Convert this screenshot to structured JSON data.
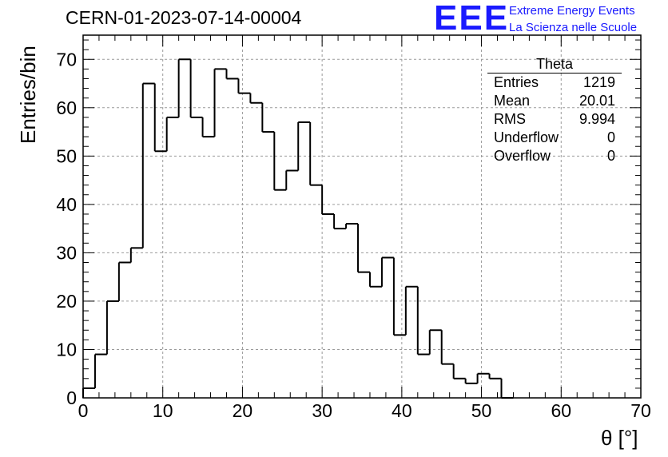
{
  "header": {
    "title": "CERN-01-2023-07-14-00004",
    "logo": "EEE",
    "logo_line1": "Extreme Energy Events",
    "logo_line2": "La Scienza nelle Scuole"
  },
  "stats": {
    "title": "Theta",
    "rows": [
      {
        "label": "Entries",
        "value": "1219"
      },
      {
        "label": "Mean",
        "value": "20.01"
      },
      {
        "label": "RMS",
        "value": "9.994"
      },
      {
        "label": "Underflow",
        "value": "0"
      },
      {
        "label": "Overflow",
        "value": "0"
      }
    ]
  },
  "chart_data": {
    "type": "bar",
    "title": "CERN-01-2023-07-14-00004",
    "xlabel": "θ [°]",
    "ylabel": "Entries/bin",
    "xlim": [
      0,
      70
    ],
    "ylim": [
      0,
      75
    ],
    "grid": true,
    "bin_width": 1.5,
    "x_ticks": [
      0,
      10,
      20,
      30,
      40,
      50,
      60,
      70
    ],
    "y_ticks": [
      0,
      10,
      20,
      30,
      40,
      50,
      60,
      70
    ],
    "values": [
      2,
      9,
      20,
      28,
      31,
      65,
      51,
      58,
      70,
      58,
      54,
      68,
      66,
      63,
      61,
      55,
      43,
      47,
      57,
      44,
      38,
      35,
      36,
      26,
      23,
      29,
      13,
      23,
      9,
      14,
      7,
      4,
      3,
      5,
      4,
      0
    ]
  }
}
